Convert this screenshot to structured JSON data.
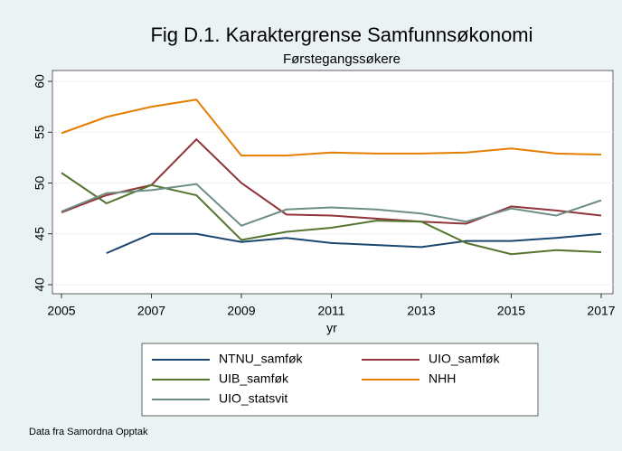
{
  "chart_data": {
    "type": "line",
    "title": "Fig D.1. Karaktergrense Samfunnsøkonomi",
    "subtitle": "Førstegangssøkere",
    "x_label": "yr",
    "note": "Data fra Samordna Opptak",
    "x": [
      2005,
      2006,
      2007,
      2008,
      2009,
      2010,
      2011,
      2012,
      2013,
      2014,
      2015,
      2016,
      2017
    ],
    "xlim": [
      2005,
      2017
    ],
    "xticks": [
      2005,
      2007,
      2009,
      2011,
      2013,
      2015,
      2017
    ],
    "ylim": [
      40,
      60
    ],
    "yticks": [
      40,
      45,
      50,
      55,
      60
    ],
    "grid": true,
    "series": [
      {
        "name": "NTNU_samføk",
        "color": "#1a476f",
        "values": [
          null,
          43.1,
          45.0,
          45.0,
          44.2,
          44.6,
          44.1,
          43.9,
          43.7,
          44.3,
          44.3,
          44.6,
          45.0
        ]
      },
      {
        "name": "UIO_samføk",
        "color": "#90353b",
        "values": [
          47.1,
          48.8,
          49.8,
          54.3,
          50.0,
          46.9,
          46.8,
          46.5,
          46.2,
          46.0,
          47.7,
          47.3,
          46.8
        ]
      },
      {
        "name": "UIB_samføk",
        "color": "#55752f",
        "values": [
          51.0,
          48.0,
          49.8,
          48.8,
          44.4,
          45.2,
          45.6,
          46.3,
          46.2,
          44.1,
          43.0,
          43.4,
          43.2
        ]
      },
      {
        "name": "NHH",
        "color": "#e37e00",
        "values": [
          54.9,
          56.5,
          57.5,
          58.2,
          52.7,
          52.7,
          53.0,
          52.9,
          52.9,
          53.0,
          53.4,
          52.9,
          52.8
        ]
      },
      {
        "name": "UIO_statsvit",
        "color": "#6e8e84",
        "values": [
          47.2,
          49.0,
          49.3,
          49.9,
          45.8,
          47.4,
          47.6,
          47.4,
          47.0,
          46.2,
          47.5,
          46.8,
          48.3
        ]
      }
    ]
  }
}
